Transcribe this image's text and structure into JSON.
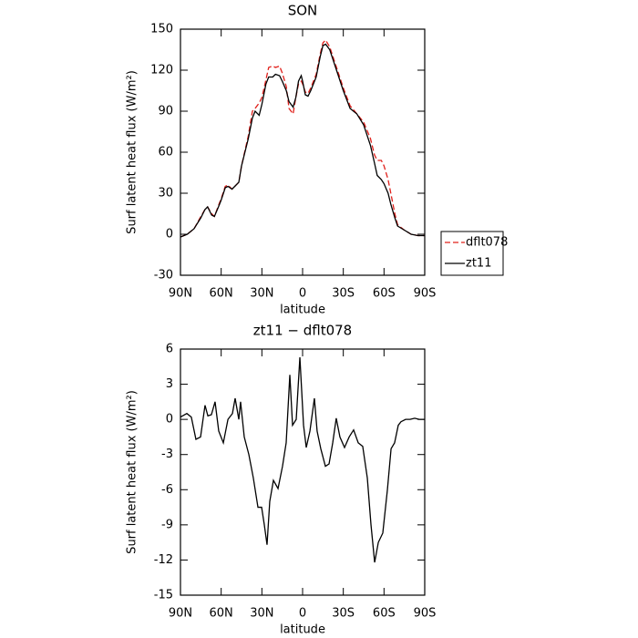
{
  "chart_data": [
    {
      "type": "line",
      "title": "SON",
      "xlabel": "latitude",
      "ylabel": "Surf latent heat flux (W/m²)",
      "x": [
        90,
        85,
        80,
        75,
        72,
        70,
        67,
        65,
        62,
        60,
        57,
        55,
        52,
        50,
        47,
        45,
        40,
        37,
        35,
        32,
        30,
        27,
        25,
        22,
        20,
        17,
        15,
        12,
        10,
        7,
        5,
        3,
        1,
        0,
        -2,
        -4,
        -6,
        -10,
        -13,
        -15,
        -17,
        -20,
        -25,
        -30,
        -35,
        -40,
        -45,
        -50,
        -53,
        -55,
        -58,
        -60,
        -63,
        -65,
        -68,
        -70,
        -75,
        -80,
        -85,
        -90
      ],
      "series": [
        {
          "name": "dflt078",
          "color": "#e0201b",
          "line_style": "dashed",
          "values": [
            -2,
            0,
            4,
            13,
            18,
            20,
            15,
            13,
            21,
            26,
            35,
            36,
            33,
            35,
            38,
            50,
            72,
            90,
            92,
            96,
            100,
            113,
            122,
            123,
            122,
            123,
            118,
            108,
            92,
            88,
            100,
            110,
            112,
            110,
            104,
            103,
            107,
            117,
            132,
            140,
            142,
            137,
            122,
            107,
            94,
            88,
            82,
            70,
            58,
            54,
            54,
            50,
            40,
            30,
            15,
            7,
            3,
            0,
            -1,
            -1
          ]
        },
        {
          "name": "zt11",
          "color": "#000000",
          "line_style": "solid",
          "values": [
            -2,
            0,
            4,
            12,
            18,
            20,
            14,
            13,
            20,
            25,
            34,
            35,
            33,
            35,
            38,
            50,
            70,
            85,
            90,
            87,
            95,
            110,
            115,
            115,
            117,
            116,
            112,
            105,
            97,
            93,
            100,
            112,
            116,
            112,
            102,
            101,
            105,
            115,
            130,
            138,
            139,
            135,
            120,
            105,
            92,
            88,
            80,
            65,
            52,
            43,
            40,
            37,
            30,
            22,
            12,
            6,
            3,
            0,
            -1,
            -1
          ]
        }
      ],
      "xlim": [
        90,
        -90
      ],
      "xticks": [
        {
          "value": 90,
          "label": "90N"
        },
        {
          "value": 60,
          "label": "60N"
        },
        {
          "value": 30,
          "label": "30N"
        },
        0,
        {
          "value": -30,
          "label": "30S"
        },
        {
          "value": -60,
          "label": "60S"
        },
        {
          "value": -90,
          "label": "90S"
        }
      ],
      "ylim": [
        -30,
        150
      ],
      "yticks": [
        -30,
        0,
        30,
        60,
        90,
        120,
        150
      ],
      "legend": "right"
    },
    {
      "type": "line",
      "title": "zt11 − dflt078",
      "xlabel": "latitude",
      "ylabel": "Surf latent heat flux (W/m²)",
      "x": [
        90,
        85.3,
        82,
        78.6,
        75.2,
        71.9,
        69.8,
        67.2,
        64.5,
        61.8,
        58.4,
        55,
        51.7,
        49.7,
        47,
        45.7,
        43,
        39.6,
        36.3,
        32.9,
        30.2,
        28.2,
        26.2,
        24.2,
        21.5,
        18.1,
        14.8,
        12.1,
        9.4,
        7.4,
        4.7,
        2,
        -0.7,
        -2.7,
        -5.4,
        -8.7,
        -10.7,
        -13.4,
        -16.8,
        -19.5,
        -22.2,
        -24.8,
        -27.5,
        -30.9,
        -34.3,
        -37.6,
        -41,
        -44.3,
        -47.7,
        -50.4,
        -53.1,
        -55.8,
        -59.1,
        -62.5,
        -65.2,
        -67.8,
        -70.5,
        -72.5,
        -75.9,
        -79.2,
        -82.6,
        -86,
        -90
      ],
      "values": [
        0.2,
        0.5,
        0.2,
        -1.7,
        -1.5,
        1.2,
        0.3,
        0.4,
        1.5,
        -1,
        -2,
        0,
        0.5,
        1.8,
        0,
        1.5,
        -1.5,
        -3,
        -5,
        -7.5,
        -7.5,
        -9,
        -10.7,
        -7,
        -5.2,
        -5.9,
        -4,
        -2,
        3.8,
        -0.5,
        0,
        5.3,
        -0.5,
        -2.4,
        -1,
        1.8,
        -1,
        -2.5,
        -4,
        -3.8,
        -2,
        0.1,
        -1.5,
        -2.4,
        -1.5,
        -0.9,
        -2,
        -2.3,
        -5,
        -9,
        -12.2,
        -10.5,
        -9.7,
        -6,
        -2.5,
        -2,
        -0.5,
        -0.2,
        0,
        0,
        0.1,
        0,
        0
      ],
      "color": "#000000",
      "xlim": [
        90,
        -90
      ],
      "xticks": [
        {
          "value": 90,
          "label": "90N"
        },
        {
          "value": 60,
          "label": "60N"
        },
        {
          "value": 30,
          "label": "30N"
        },
        0,
        {
          "value": -30,
          "label": "30S"
        },
        {
          "value": -60,
          "label": "60S"
        },
        {
          "value": -90,
          "label": "90S"
        }
      ],
      "ylim": [
        -15,
        6
      ],
      "yticks": [
        -15,
        -12,
        -9,
        -6,
        -3,
        0,
        3,
        6
      ]
    }
  ]
}
